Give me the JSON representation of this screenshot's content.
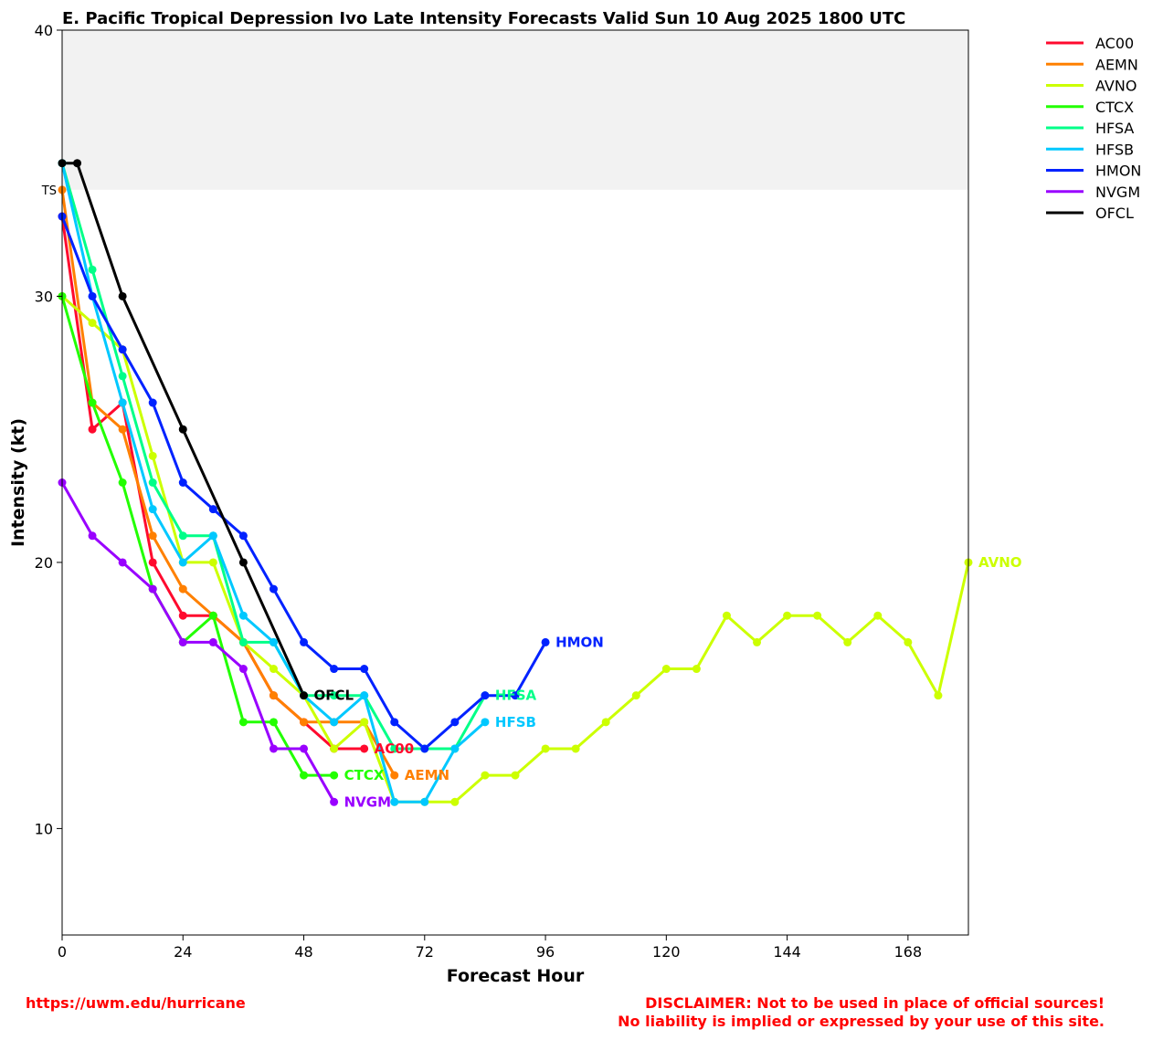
{
  "chart_data": {
    "type": "line",
    "title": "E. Pacific Tropical Depression Ivo Late Intensity Forecasts Valid Sun 10 Aug 2025 1800 UTC",
    "xlabel": "Forecast Hour",
    "ylabel": "Intensity (kt)",
    "xlim": [
      0,
      180
    ],
    "ylim": [
      6,
      40
    ],
    "xticks": [
      0,
      24,
      48,
      72,
      96,
      120,
      144,
      168
    ],
    "yticks": [
      10,
      20,
      30,
      40
    ],
    "grid": false,
    "legend_position": "outside-top-right",
    "threshold_band": {
      "label": "TS",
      "from": 34,
      "to": 40,
      "color": "#f2f2f2"
    },
    "series": [
      {
        "name": "AC00",
        "color": "#ff0a2e",
        "x": [
          0,
          6,
          12,
          18,
          24,
          30,
          36,
          42,
          48,
          54,
          60
        ],
        "y": [
          33,
          25,
          26,
          20,
          18,
          18,
          17,
          15,
          14,
          13,
          13
        ]
      },
      {
        "name": "AEMN",
        "color": "#ff8000",
        "x": [
          0,
          6,
          12,
          18,
          24,
          30,
          36,
          42,
          48,
          54,
          60,
          66
        ],
        "y": [
          34,
          26,
          25,
          21,
          19,
          18,
          17,
          15,
          14,
          14,
          14,
          12
        ]
      },
      {
        "name": "AVNO",
        "color": "#ccff00",
        "x": [
          0,
          6,
          12,
          18,
          24,
          30,
          36,
          42,
          48,
          54,
          60,
          66,
          72,
          78,
          84,
          90,
          96,
          102,
          108,
          114,
          120,
          126,
          132,
          138,
          144,
          150,
          156,
          162,
          168,
          174,
          180
        ],
        "y": [
          30,
          29,
          28,
          24,
          20,
          20,
          17,
          16,
          15,
          13,
          14,
          11,
          11,
          11,
          12,
          12,
          13,
          13,
          14,
          15,
          16,
          16,
          18,
          17,
          18,
          18,
          17,
          18,
          17,
          15,
          20
        ]
      },
      {
        "name": "CTCX",
        "color": "#22ff00",
        "x": [
          0,
          6,
          12,
          18,
          24,
          30,
          36,
          42,
          48,
          54
        ],
        "y": [
          30,
          26,
          23,
          19,
          17,
          18,
          14,
          14,
          12,
          12
        ]
      },
      {
        "name": "HFSA",
        "color": "#00ff88",
        "x": [
          0,
          6,
          12,
          18,
          24,
          30,
          36,
          42,
          48,
          54,
          60,
          66,
          72,
          78,
          84
        ],
        "y": [
          35,
          31,
          27,
          23,
          21,
          21,
          17,
          17,
          15,
          15,
          15,
          13,
          13,
          13,
          15
        ]
      },
      {
        "name": "HFSB",
        "color": "#00c8ff",
        "x": [
          0,
          6,
          12,
          18,
          24,
          30,
          36,
          42,
          48,
          54,
          60,
          66,
          72,
          78,
          84
        ],
        "y": [
          35,
          30,
          26,
          22,
          20,
          21,
          18,
          17,
          15,
          14,
          15,
          11,
          11,
          13,
          14
        ]
      },
      {
        "name": "HMON",
        "color": "#0022ff",
        "x": [
          0,
          6,
          12,
          18,
          24,
          30,
          36,
          42,
          48,
          54,
          60,
          66,
          72,
          78,
          84,
          90,
          96
        ],
        "y": [
          33,
          30,
          28,
          26,
          23,
          22,
          21,
          19,
          17,
          16,
          16,
          14,
          13,
          14,
          15,
          15,
          17
        ]
      },
      {
        "name": "NVGM",
        "color": "#9900ff",
        "x": [
          0,
          6,
          12,
          18,
          24,
          30,
          36,
          42,
          48,
          54
        ],
        "y": [
          23,
          21,
          20,
          19,
          17,
          17,
          16,
          13,
          13,
          11
        ]
      },
      {
        "name": "OFCL",
        "color": "#000000",
        "x": [
          0,
          3,
          12,
          24,
          36,
          48
        ],
        "y": [
          35,
          35,
          30,
          25,
          20,
          15
        ]
      }
    ]
  },
  "footer": {
    "url": "https://uwm.edu/hurricane",
    "disclaimer_line1": "DISCLAIMER: Not to be used in place of official sources!",
    "disclaimer_line2": "No liability is implied or expressed by your use of this site."
  }
}
